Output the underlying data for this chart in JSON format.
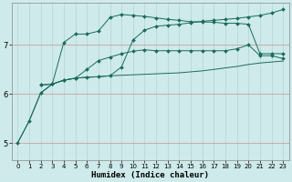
{
  "xlabel": "Humidex (Indice chaleur)",
  "bg_color": "#ceeaea",
  "grid_color": "#b8d8d8",
  "line_color": "#1a6b5a",
  "xlim": [
    -0.5,
    23.5
  ],
  "ylim": [
    4.65,
    7.85
  ],
  "yticks": [
    5,
    6,
    7
  ],
  "xticks": [
    0,
    1,
    2,
    3,
    4,
    5,
    6,
    7,
    8,
    9,
    10,
    11,
    12,
    13,
    14,
    15,
    16,
    17,
    18,
    19,
    20,
    21,
    22,
    23
  ],
  "series": [
    {
      "x": [
        0,
        1,
        2,
        3,
        4,
        5,
        6,
        7,
        8,
        9,
        10,
        11,
        12,
        13,
        14,
        15,
        16,
        17,
        18,
        19,
        20,
        21,
        22,
        23
      ],
      "y": [
        5.0,
        5.45,
        6.02,
        6.2,
        6.28,
        6.32,
        6.34,
        6.35,
        6.37,
        6.38,
        6.39,
        6.4,
        6.41,
        6.42,
        6.43,
        6.45,
        6.47,
        6.5,
        6.53,
        6.56,
        6.6,
        6.63,
        6.65,
        6.67
      ],
      "marker": false
    },
    {
      "x": [
        0,
        1,
        2,
        3,
        4,
        5,
        6,
        7,
        8,
        9,
        10,
        11,
        12,
        13,
        14,
        15,
        16,
        17,
        18,
        19,
        20,
        21,
        22,
        23
      ],
      "y": [
        5.0,
        5.45,
        6.02,
        6.2,
        6.28,
        6.32,
        6.5,
        6.68,
        6.75,
        6.82,
        6.87,
        6.9,
        6.88,
        6.88,
        6.88,
        6.88,
        6.88,
        6.88,
        6.88,
        6.92,
        7.0,
        6.78,
        6.78,
        6.72
      ],
      "marker": true
    },
    {
      "x": [
        2,
        3,
        4,
        5,
        6,
        7,
        8,
        9,
        10,
        11,
        12,
        13,
        14,
        15,
        16,
        17,
        18,
        19,
        20,
        21,
        22,
        23
      ],
      "y": [
        6.18,
        6.2,
        7.05,
        7.22,
        7.22,
        7.28,
        7.56,
        7.62,
        7.6,
        7.58,
        7.55,
        7.52,
        7.5,
        7.47,
        7.47,
        7.46,
        7.44,
        7.44,
        7.42,
        6.82,
        6.82,
        6.82
      ],
      "marker": true
    },
    {
      "x": [
        2,
        3,
        4,
        5,
        6,
        7,
        8,
        9,
        10,
        11,
        12,
        13,
        14,
        15,
        16,
        17,
        18,
        19,
        20,
        21,
        22,
        23
      ],
      "y": [
        6.18,
        6.2,
        6.28,
        6.32,
        6.34,
        6.35,
        6.37,
        6.55,
        7.1,
        7.3,
        7.38,
        7.4,
        7.42,
        7.45,
        7.48,
        7.5,
        7.52,
        7.54,
        7.57,
        7.6,
        7.65,
        7.72
      ],
      "marker": true
    }
  ]
}
